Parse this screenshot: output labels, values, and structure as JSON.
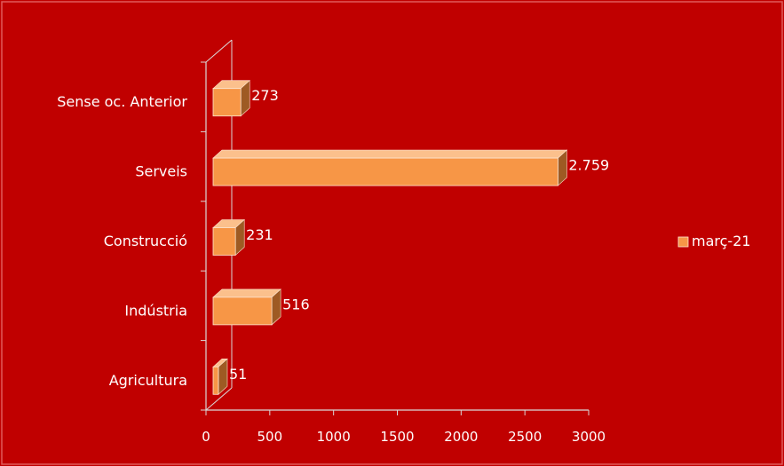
{
  "colors": {
    "background": "#c00000",
    "border": "#e05a5a",
    "axis": "#d9d9d9",
    "bar_front": "#f79646",
    "bar_top": "#fbc08c",
    "bar_side": "#9e5a23",
    "bar_outline": "#fde5d1"
  },
  "chart_data": {
    "type": "bar",
    "orientation": "horizontal",
    "style": "3d",
    "title": "",
    "xlabel": "",
    "ylabel": "",
    "categories": [
      "Sense oc. Anterior",
      "Serveis",
      "Construcció",
      "Indústria",
      "Agricultura"
    ],
    "series": [
      {
        "name": "març-21",
        "values": [
          273,
          2759,
          231,
          516,
          51
        ],
        "labels": [
          "273",
          "2.759",
          "231",
          "516",
          "51"
        ]
      }
    ],
    "xlim": [
      0,
      3000
    ],
    "xticks": [
      0,
      500,
      1000,
      1500,
      2000,
      2500,
      3000
    ],
    "xtick_labels": [
      "0",
      "500",
      "1000",
      "1500",
      "2000",
      "2500",
      "3000"
    ],
    "grid": false,
    "legend": {
      "position": "right",
      "entries": [
        "març-21"
      ]
    }
  }
}
